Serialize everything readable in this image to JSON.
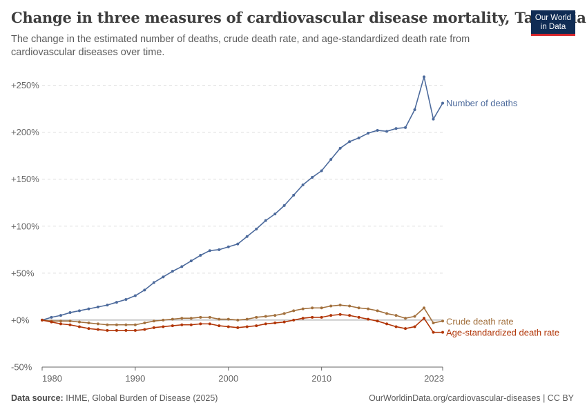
{
  "header": {
    "title": "Change in three measures of cardiovascular disease mortality, Tanzania",
    "subtitle": "The change in the estimated number of deaths, crude death rate, and age-standardized death rate from cardiovascular diseases over time."
  },
  "logo": {
    "line1": "Our World",
    "line2": "in Data"
  },
  "footer": {
    "source_label": "Data source:",
    "source_text": "IHME, Global Burden of Disease (2025)",
    "url_license": "OurWorldinData.org/cardiovascular-diseases | CC BY"
  },
  "colors": {
    "deaths": "#4c6a9c",
    "crude": "#a2703d",
    "age_std": "#b13507",
    "grid": "#dddddd",
    "axis": "#666666",
    "zero_line": "#999999"
  },
  "chart_data": {
    "type": "line",
    "title": "Change in three measures of cardiovascular disease mortality, Tanzania",
    "y_unit": "percent change",
    "ylim": [
      -50,
      260
    ],
    "y_ticks": [
      -50,
      0,
      50,
      100,
      150,
      200,
      250
    ],
    "y_tick_labels": [
      "-50%",
      "+0%",
      "+50%",
      "+100%",
      "+150%",
      "+200%",
      "+250%"
    ],
    "xlim": [
      1980,
      2023
    ],
    "x_ticks": [
      1980,
      1990,
      2000,
      2010,
      2023
    ],
    "x_tick_labels": [
      "1980",
      "1990",
      "2000",
      "2010",
      "2023"
    ],
    "grid": "horizontal dashed",
    "legend": "inline labels at line ends (right)",
    "x": [
      1980,
      1981,
      1982,
      1983,
      1984,
      1985,
      1986,
      1987,
      1988,
      1989,
      1990,
      1991,
      1992,
      1993,
      1994,
      1995,
      1996,
      1997,
      1998,
      1999,
      2000,
      2001,
      2002,
      2003,
      2004,
      2005,
      2006,
      2007,
      2008,
      2009,
      2010,
      2011,
      2012,
      2013,
      2014,
      2015,
      2016,
      2017,
      2018,
      2019,
      2020,
      2021,
      2022,
      2023
    ],
    "series": [
      {
        "name": "Number of deaths",
        "color_key": "deaths",
        "values": [
          0,
          3,
          5,
          8,
          10,
          12,
          14,
          16,
          19,
          22,
          26,
          32,
          40,
          46,
          52,
          57,
          63,
          69,
          74,
          75,
          78,
          81,
          89,
          97,
          106,
          113,
          122,
          133,
          144,
          152,
          159,
          171,
          183,
          190,
          194,
          199,
          202,
          201,
          204,
          205,
          224,
          259,
          214,
          231
        ]
      },
      {
        "name": "Crude death rate",
        "color_key": "crude",
        "values": [
          0,
          -1,
          -1,
          -1,
          -2,
          -3,
          -4,
          -5,
          -5,
          -5,
          -5,
          -3,
          -1,
          0,
          1,
          2,
          2,
          3,
          3,
          1,
          1,
          0,
          1,
          3,
          4,
          5,
          7,
          10,
          12,
          13,
          13,
          15,
          16,
          15,
          13,
          12,
          10,
          7,
          5,
          2,
          4,
          13,
          -3,
          -1
        ]
      },
      {
        "name": "Age-standardized death rate",
        "color_key": "age_std",
        "values": [
          0,
          -2,
          -4,
          -5,
          -7,
          -9,
          -10,
          -11,
          -11,
          -11,
          -11,
          -10,
          -8,
          -7,
          -6,
          -5,
          -5,
          -4,
          -4,
          -6,
          -7,
          -8,
          -7,
          -6,
          -4,
          -3,
          -2,
          0,
          2,
          3,
          3,
          5,
          6,
          5,
          3,
          1,
          -1,
          -4,
          -7,
          -9,
          -7,
          2,
          -13,
          -13
        ]
      }
    ]
  }
}
